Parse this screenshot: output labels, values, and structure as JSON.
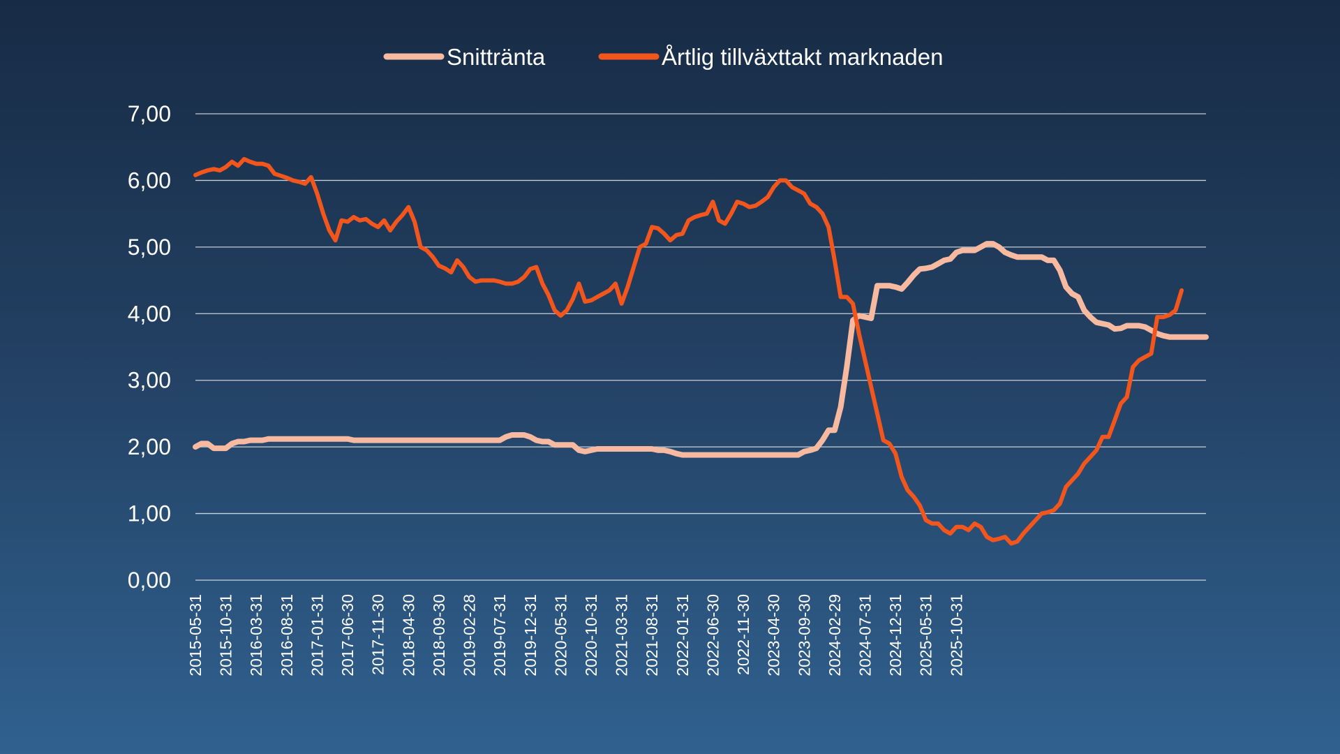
{
  "chart_data": {
    "type": "line",
    "title": "",
    "xlabel": "",
    "ylabel": "",
    "ylim": [
      0,
      7
    ],
    "yticks": [
      "0,00",
      "1,00",
      "2,00",
      "3,00",
      "4,00",
      "5,00",
      "6,00",
      "7,00"
    ],
    "x_start": "2015-05",
    "x_tick_labels": [
      "2015-05-31",
      "2015-10-31",
      "2016-03-31",
      "2016-08-31",
      "2017-01-31",
      "2017-06-30",
      "2017-11-30",
      "2018-04-30",
      "2018-09-30",
      "2019-02-28",
      "2019-07-31",
      "2019-12-31",
      "2020-05-31",
      "2020-10-31",
      "2021-03-31",
      "2021-08-31",
      "2022-01-31",
      "2022-06-30",
      "2022-11-30",
      "2023-04-30",
      "2023-09-30",
      "2024-02-29",
      "2024-07-31",
      "2024-12-31",
      "2025-05-31",
      "2025-10-31"
    ],
    "grid": true,
    "legend_position": "top-center",
    "colors": {
      "Snittränta": "#f7b9a0",
      "Årtlig tillväxttakt marknaden": "#f2561d"
    },
    "series": [
      {
        "name": "Snittränta",
        "values": [
          2.0,
          2.05,
          2.05,
          1.98,
          1.98,
          1.98,
          2.05,
          2.08,
          2.08,
          2.1,
          2.1,
          2.1,
          2.12,
          2.12,
          2.12,
          2.12,
          2.12,
          2.12,
          2.12,
          2.12,
          2.12,
          2.12,
          2.12,
          2.12,
          2.12,
          2.12,
          2.1,
          2.1,
          2.1,
          2.1,
          2.1,
          2.1,
          2.1,
          2.1,
          2.1,
          2.1,
          2.1,
          2.1,
          2.1,
          2.1,
          2.1,
          2.1,
          2.1,
          2.1,
          2.1,
          2.1,
          2.1,
          2.1,
          2.1,
          2.1,
          2.1,
          2.15,
          2.18,
          2.18,
          2.18,
          2.15,
          2.1,
          2.08,
          2.08,
          2.03,
          2.03,
          2.03,
          2.03,
          1.95,
          1.93,
          1.95,
          1.97,
          1.97,
          1.97,
          1.97,
          1.97,
          1.97,
          1.97,
          1.97,
          1.97,
          1.97,
          1.95,
          1.95,
          1.93,
          1.9,
          1.88,
          1.88,
          1.88,
          1.88,
          1.88,
          1.88,
          1.88,
          1.88,
          1.88,
          1.88,
          1.88,
          1.88,
          1.88,
          1.88,
          1.88,
          1.88,
          1.88,
          1.88,
          1.88,
          1.88,
          1.93,
          1.95,
          1.98,
          2.1,
          2.25,
          2.25,
          2.6,
          3.2,
          3.9,
          3.97,
          3.95,
          3.93,
          4.42,
          4.42,
          4.42,
          4.4,
          4.37,
          4.47,
          4.58,
          4.67,
          4.68,
          4.7,
          4.75,
          4.8,
          4.82,
          4.92,
          4.95,
          4.95,
          4.95,
          5.0,
          5.05,
          5.05,
          5.0,
          4.92,
          4.88,
          4.85,
          4.85,
          4.85,
          4.85,
          4.85,
          4.8,
          4.8,
          4.65,
          4.4,
          4.3,
          4.25,
          4.05,
          3.95,
          3.87,
          3.85,
          3.83,
          3.77,
          3.78,
          3.82,
          3.82,
          3.82,
          3.8,
          3.75,
          3.7,
          3.67,
          3.65,
          3.65,
          3.65,
          3.65,
          3.65,
          3.65,
          3.65
        ]
      },
      {
        "name": "Årtlig tillväxttakt marknaden",
        "values": [
          6.08,
          6.12,
          6.15,
          6.17,
          6.15,
          6.2,
          6.28,
          6.22,
          6.32,
          6.28,
          6.25,
          6.25,
          6.22,
          6.1,
          6.07,
          6.04,
          6.0,
          5.98,
          5.95,
          6.05,
          5.8,
          5.5,
          5.25,
          5.1,
          5.4,
          5.38,
          5.45,
          5.4,
          5.42,
          5.35,
          5.3,
          5.4,
          5.25,
          5.38,
          5.48,
          5.6,
          5.38,
          5.0,
          4.95,
          4.85,
          4.72,
          4.68,
          4.62,
          4.8,
          4.7,
          4.55,
          4.48,
          4.5,
          4.5,
          4.5,
          4.48,
          4.45,
          4.45,
          4.48,
          4.55,
          4.67,
          4.7,
          4.45,
          4.28,
          4.05,
          3.97,
          4.05,
          4.22,
          4.45,
          4.18,
          4.2,
          4.25,
          4.3,
          4.35,
          4.45,
          4.15,
          4.4,
          4.7,
          5.0,
          5.05,
          5.3,
          5.28,
          5.2,
          5.1,
          5.18,
          5.2,
          5.4,
          5.45,
          5.48,
          5.5,
          5.68,
          5.4,
          5.35,
          5.5,
          5.68,
          5.65,
          5.6,
          5.62,
          5.68,
          5.75,
          5.9,
          6.0,
          6.0,
          5.9,
          5.85,
          5.8,
          5.65,
          5.6,
          5.5,
          5.3,
          4.8,
          4.25,
          4.25,
          4.15,
          3.7,
          3.3,
          2.9,
          2.5,
          2.1,
          2.05,
          1.9,
          1.55,
          1.35,
          1.25,
          1.12,
          0.9,
          0.85,
          0.85,
          0.75,
          0.7,
          0.8,
          0.8,
          0.75,
          0.85,
          0.8,
          0.65,
          0.6,
          0.62,
          0.65,
          0.55,
          0.58,
          0.7,
          0.8,
          0.9,
          1.0,
          1.02,
          1.05,
          1.15,
          1.4,
          1.5,
          1.6,
          1.75,
          1.85,
          1.95,
          2.15,
          2.15,
          2.4,
          2.65,
          2.75,
          3.2,
          3.3,
          3.35,
          3.4,
          3.95,
          3.95,
          3.98,
          4.05,
          4.35
        ]
      }
    ]
  }
}
